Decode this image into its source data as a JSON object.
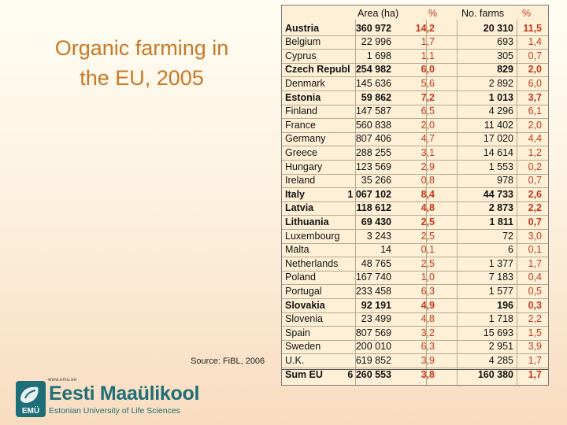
{
  "slide": {
    "title_line1": "Organic farming in",
    "title_line2": "the EU, 2005",
    "source": "Source: FiBL, 2006"
  },
  "logo": {
    "url": "www.emu.ee",
    "name": "Eesti Maaülikool",
    "subtitle": "Estonian University of Life Sciences",
    "mark_text": "EMÜ",
    "brand_color": "#1e6e78"
  },
  "table": {
    "headers": [
      "",
      "Area (ha)",
      "%",
      "No. farms",
      "%"
    ],
    "rows": [
      {
        "country": "Austria",
        "area": "360 972",
        "area_pct": "14,2",
        "farms": "20 310",
        "farms_pct": "11,5",
        "bold": true
      },
      {
        "country": "Belgium",
        "area": "22 996",
        "area_pct": "1,7",
        "farms": "693",
        "farms_pct": "1,4",
        "bold": false
      },
      {
        "country": "Cyprus",
        "area": "1 698",
        "area_pct": "1,1",
        "farms": "305",
        "farms_pct": "0,7",
        "bold": false
      },
      {
        "country": "Czech Republ",
        "area": "254 982",
        "area_pct": "6,0",
        "farms": "829",
        "farms_pct": "2,0",
        "bold": true
      },
      {
        "country": "Denmark",
        "area": "145 636",
        "area_pct": "5,6",
        "farms": "2 892",
        "farms_pct": "6,0",
        "bold": false
      },
      {
        "country": "Estonia",
        "area": "59 862",
        "area_pct": "7,2",
        "farms": "1 013",
        "farms_pct": "3,7",
        "bold": true
      },
      {
        "country": "Finland",
        "area": "147 587",
        "area_pct": "6,5",
        "farms": "4 296",
        "farms_pct": "6,1",
        "bold": false
      },
      {
        "country": "France",
        "area": "560 838",
        "area_pct": "2,0",
        "farms": "11 402",
        "farms_pct": "2,0",
        "bold": false
      },
      {
        "country": "Germany",
        "area": "807 406",
        "area_pct": "4,7",
        "farms": "17 020",
        "farms_pct": "4,4",
        "bold": false
      },
      {
        "country": "Greece",
        "area": "288 255",
        "area_pct": "3,1",
        "farms": "14 614",
        "farms_pct": "1,2",
        "bold": false
      },
      {
        "country": "Hungary",
        "area": "123 569",
        "area_pct": "2,9",
        "farms": "1 553",
        "farms_pct": "0,2",
        "bold": false
      },
      {
        "country": "Ireland",
        "area": "35 266",
        "area_pct": "0,8",
        "farms": "978",
        "farms_pct": "0,7",
        "bold": false
      },
      {
        "country": "Italy",
        "area": "1 067 102",
        "area_pct": "8,4",
        "farms": "44 733",
        "farms_pct": "2,6",
        "bold": true
      },
      {
        "country": "Latvia",
        "area": "118 612",
        "area_pct": "4,8",
        "farms": "2 873",
        "farms_pct": "2,2",
        "bold": true
      },
      {
        "country": "Lithuania",
        "area": "69 430",
        "area_pct": "2,5",
        "farms": "1 811",
        "farms_pct": "0,7",
        "bold": true
      },
      {
        "country": "Luxembourg",
        "area": "3 243",
        "area_pct": "2,5",
        "farms": "72",
        "farms_pct": "3,0",
        "bold": false
      },
      {
        "country": "Malta",
        "area": "14",
        "area_pct": "0,1",
        "farms": "6",
        "farms_pct": "0,1",
        "bold": false
      },
      {
        "country": "Netherlands",
        "area": "48 765",
        "area_pct": "2,5",
        "farms": "1 377",
        "farms_pct": "1,7",
        "bold": false
      },
      {
        "country": "Poland",
        "area": "167 740",
        "area_pct": "1,0",
        "farms": "7 183",
        "farms_pct": "0,4",
        "bold": false
      },
      {
        "country": "Portugal",
        "area": "233 458",
        "area_pct": "6,3",
        "farms": "1 577",
        "farms_pct": "0,5",
        "bold": false
      },
      {
        "country": "Slovakia",
        "area": "92 191",
        "area_pct": "4,9",
        "farms": "196",
        "farms_pct": "0,3",
        "bold": true
      },
      {
        "country": "Slovenia",
        "area": "23 499",
        "area_pct": "4,8",
        "farms": "1 718",
        "farms_pct": "2,2",
        "bold": false
      },
      {
        "country": "Spain",
        "area": "807 569",
        "area_pct": "3,2",
        "farms": "15 693",
        "farms_pct": "1,5",
        "bold": false
      },
      {
        "country": "Sweden",
        "area": "200 010",
        "area_pct": "6,3",
        "farms": "2 951",
        "farms_pct": "3,9",
        "bold": false
      },
      {
        "country": "U.K.",
        "area": "619 852",
        "area_pct": "3,9",
        "farms": "4 285",
        "farms_pct": "1,7",
        "bold": false
      }
    ],
    "total": {
      "country": "Sum EU",
      "area": "6 260 553",
      "area_pct": "3,8",
      "farms": "160 380",
      "farms_pct": "1,7"
    }
  }
}
